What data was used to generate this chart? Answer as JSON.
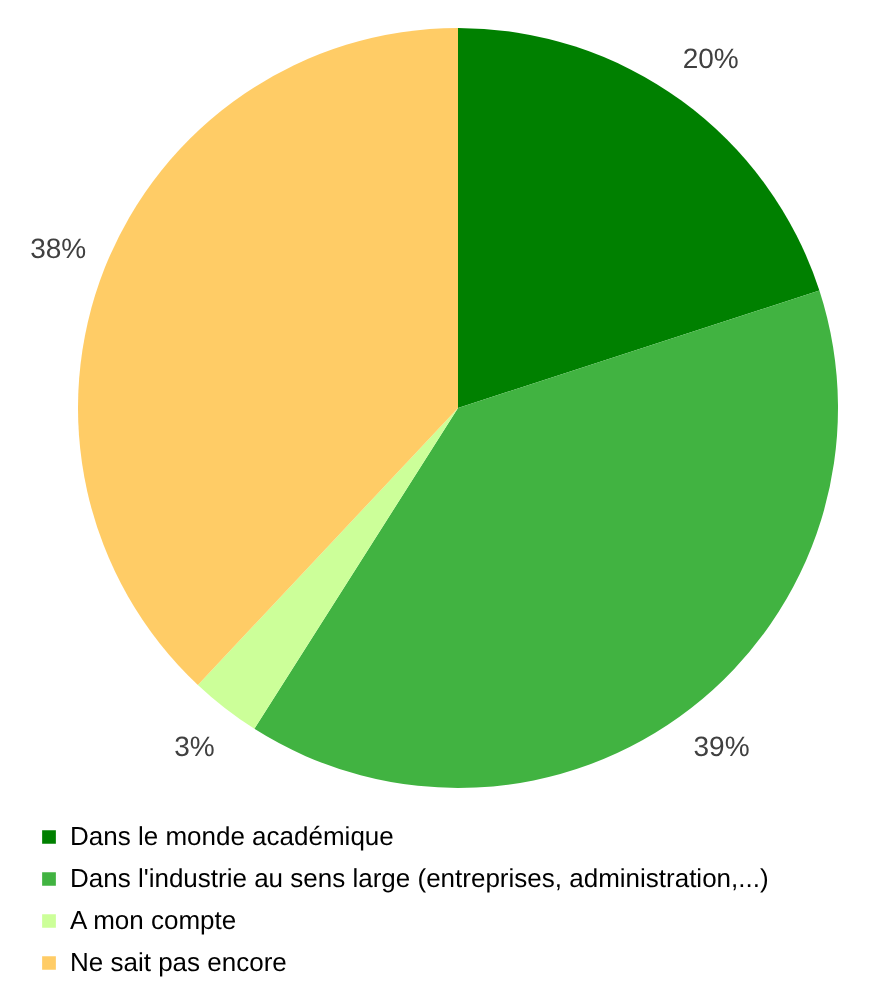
{
  "chart_data": {
    "type": "pie",
    "categories": [
      "Dans le monde académique",
      "Dans l'industrie au sens large (entreprises, administration,...)",
      "A mon compte",
      "Ne sait pas encore"
    ],
    "values": [
      20,
      39,
      3,
      38
    ],
    "colors": [
      "#008000",
      "#41b341",
      "#ccff99",
      "#ffcc66"
    ],
    "value_labels": [
      "20%",
      "39%",
      "3%",
      "38%"
    ],
    "legend": "bottom"
  }
}
